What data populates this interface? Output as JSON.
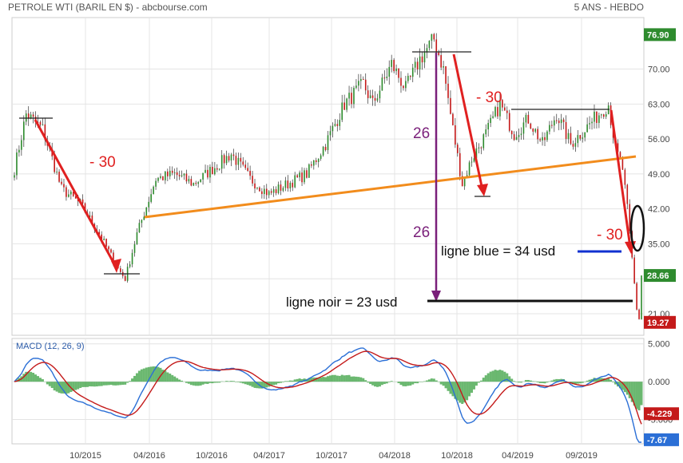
{
  "header": {
    "title": "PETROLE WTI (BARIL EN $) - abcbourse.com",
    "period": "5 ANS - HEBDO"
  },
  "colors": {
    "up": "#2e8b2e",
    "down": "#c41a1a",
    "grid": "#e4e4e4",
    "annotation_red": "#e02020",
    "support_orange": "#f28c1c",
    "purple": "#7a1f7a",
    "blue_line": "#1030d0",
    "macd_line": "#2b6fd6",
    "signal_line": "#c41a1a",
    "histogram": "#3aa040"
  },
  "chart_data": [
    {
      "type": "candlestick",
      "x_ticks": [
        "10/2015",
        "04/2016",
        "10/2016",
        "04/2017",
        "10/2017",
        "04/2018",
        "10/2018",
        "04/2019",
        "09/2019"
      ],
      "y_ticks": [
        "70.00",
        "63.00",
        "56.00",
        "49.00",
        "42.00",
        "35.00",
        "28.00",
        "21.00"
      ],
      "ylim": [
        17,
        80
      ],
      "price_badges": [
        {
          "label": "76.90",
          "value": 76.9,
          "color": "#2e8b2e"
        },
        {
          "label": "28.66",
          "value": 28.66,
          "color": "#2e8b2e"
        },
        {
          "label": "19.27",
          "value": 19.27,
          "color": "#c41a1a"
        }
      ],
      "key_points": [
        {
          "week": 0,
          "value": 50
        },
        {
          "week": 5,
          "value": 61
        },
        {
          "week": 12,
          "value": 58
        },
        {
          "week": 20,
          "value": 46
        },
        {
          "week": 28,
          "value": 43
        },
        {
          "week": 36,
          "value": 37
        },
        {
          "week": 44,
          "value": 30
        },
        {
          "week": 47,
          "value": 28
        },
        {
          "week": 52,
          "value": 37
        },
        {
          "week": 60,
          "value": 48
        },
        {
          "week": 68,
          "value": 49
        },
        {
          "week": 76,
          "value": 47
        },
        {
          "week": 84,
          "value": 50
        },
        {
          "week": 92,
          "value": 53
        },
        {
          "week": 100,
          "value": 48
        },
        {
          "week": 108,
          "value": 45
        },
        {
          "week": 116,
          "value": 47
        },
        {
          "week": 124,
          "value": 49
        },
        {
          "week": 132,
          "value": 55
        },
        {
          "week": 140,
          "value": 63
        },
        {
          "week": 148,
          "value": 67
        },
        {
          "week": 152,
          "value": 63
        },
        {
          "week": 160,
          "value": 71
        },
        {
          "week": 166,
          "value": 66
        },
        {
          "week": 172,
          "value": 72
        },
        {
          "week": 178,
          "value": 76
        },
        {
          "week": 182,
          "value": 70
        },
        {
          "week": 186,
          "value": 58
        },
        {
          "week": 190,
          "value": 47
        },
        {
          "week": 194,
          "value": 52
        },
        {
          "week": 200,
          "value": 57
        },
        {
          "week": 206,
          "value": 63
        },
        {
          "week": 212,
          "value": 57
        },
        {
          "week": 218,
          "value": 60
        },
        {
          "week": 224,
          "value": 55
        },
        {
          "week": 230,
          "value": 61
        },
        {
          "week": 236,
          "value": 55
        },
        {
          "week": 242,
          "value": 58
        },
        {
          "week": 248,
          "value": 61
        },
        {
          "week": 252,
          "value": 63
        },
        {
          "week": 255,
          "value": 54
        },
        {
          "week": 258,
          "value": 50
        },
        {
          "week": 260,
          "value": 42
        },
        {
          "week": 262,
          "value": 32
        },
        {
          "week": 264,
          "value": 22
        },
        {
          "week": 265,
          "value": 20
        },
        {
          "week": 266,
          "value": 28.66
        }
      ],
      "annotations": {
        "red_labels": [
          "- 30",
          "- 30",
          "- 30"
        ],
        "purple_labels": [
          "26",
          "26"
        ],
        "blue_line_label": "ligne blue = 34 usd",
        "black_line_label": "ligne noir = 23 usd"
      }
    },
    {
      "type": "macd",
      "label": "MACD (12, 26, 9)",
      "y_ticks": [
        "5.000",
        "0.000",
        "-5.000"
      ],
      "ylim": [
        -8,
        5.5
      ],
      "badges": [
        {
          "label": "-4.229",
          "value": -4.229,
          "color": "#c41a1a"
        },
        {
          "label": "-7.67",
          "value": -7.67,
          "color": "#2b6fd6"
        }
      ]
    }
  ]
}
